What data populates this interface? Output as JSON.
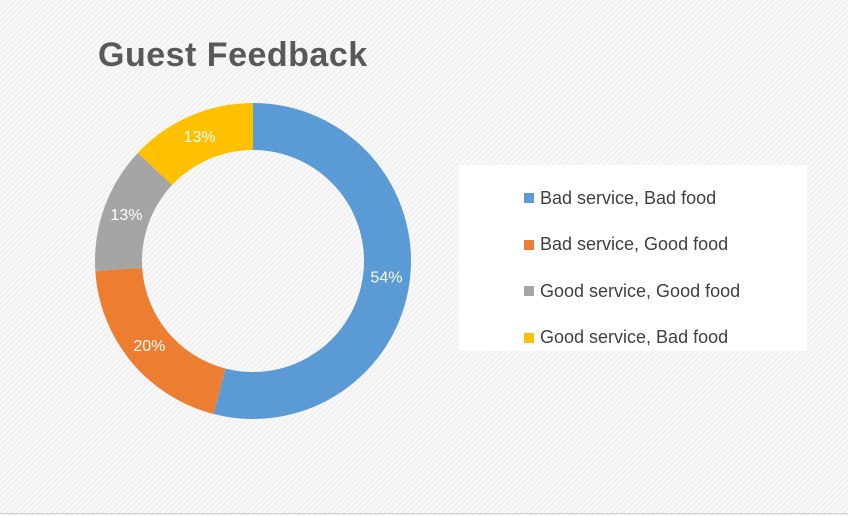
{
  "chart_data": {
    "type": "pie",
    "donut": true,
    "title": "Guest Feedback",
    "categories": [
      "Bad service, Bad food",
      "Bad service, Good food",
      "Good service, Good food",
      "Good service, Bad food"
    ],
    "values": [
      54,
      20,
      13,
      13
    ],
    "value_labels": [
      "54%",
      "20%",
      "13%",
      "13%"
    ],
    "colors": [
      "#5b9bd5",
      "#ed7d31",
      "#a5a5a5",
      "#ffc000"
    ],
    "legend_position": "right"
  }
}
